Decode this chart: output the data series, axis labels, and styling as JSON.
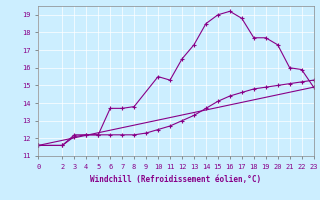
{
  "xlabel": "Windchill (Refroidissement éolien,°C)",
  "bg_color": "#cceeff",
  "line_color": "#880088",
  "xlim": [
    0,
    23
  ],
  "ylim": [
    11,
    19.5
  ],
  "xticks": [
    0,
    2,
    3,
    4,
    5,
    6,
    7,
    8,
    9,
    10,
    11,
    12,
    13,
    14,
    15,
    16,
    17,
    18,
    19,
    20,
    21,
    22,
    23
  ],
  "yticks": [
    11,
    12,
    13,
    14,
    15,
    16,
    17,
    18,
    19
  ],
  "curve1_x": [
    0,
    2,
    3,
    4,
    5,
    6,
    7,
    8,
    10,
    11,
    12,
    13,
    14,
    15,
    16,
    17,
    18,
    19,
    20,
    21,
    22,
    23
  ],
  "curve1_y": [
    11.6,
    11.6,
    12.2,
    12.2,
    12.2,
    13.7,
    13.7,
    13.8,
    15.5,
    15.3,
    16.5,
    17.3,
    18.5,
    19.0,
    19.2,
    18.8,
    17.7,
    17.7,
    17.3,
    16.0,
    15.9,
    14.9
  ],
  "curve2_x": [
    0,
    2,
    3,
    4,
    5,
    6,
    7,
    8,
    9,
    10,
    11,
    12,
    13,
    14,
    15,
    16,
    17,
    18,
    19,
    20,
    21,
    22,
    23
  ],
  "curve2_y": [
    11.6,
    11.6,
    12.1,
    12.2,
    12.2,
    12.2,
    12.2,
    12.2,
    12.3,
    12.5,
    12.7,
    13.0,
    13.3,
    13.7,
    14.1,
    14.4,
    14.6,
    14.8,
    14.9,
    15.0,
    15.1,
    15.2,
    15.3
  ],
  "curve3_x": [
    0,
    23
  ],
  "curve3_y": [
    11.6,
    14.9
  ]
}
